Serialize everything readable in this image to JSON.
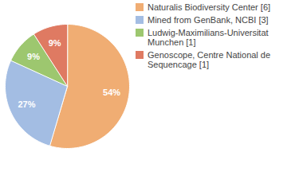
{
  "chart_data": {
    "type": "pie",
    "categories": [
      "Naturalis Biodiversity Center [6]",
      "Mined from GenBank, NCBI [3]",
      "Ludwig-Maximilians-Universitat Munchen [1]",
      "Genoscope, Centre National de Sequencage [1]"
    ],
    "values": [
      54,
      27,
      9,
      9
    ],
    "value_labels": [
      "54%",
      "27%",
      "9%",
      "9%"
    ],
    "colors": [
      "#f0ad73",
      "#a3bde3",
      "#9dc76f",
      "#df7a62"
    ],
    "data_labels": true,
    "legend": "top-right"
  }
}
